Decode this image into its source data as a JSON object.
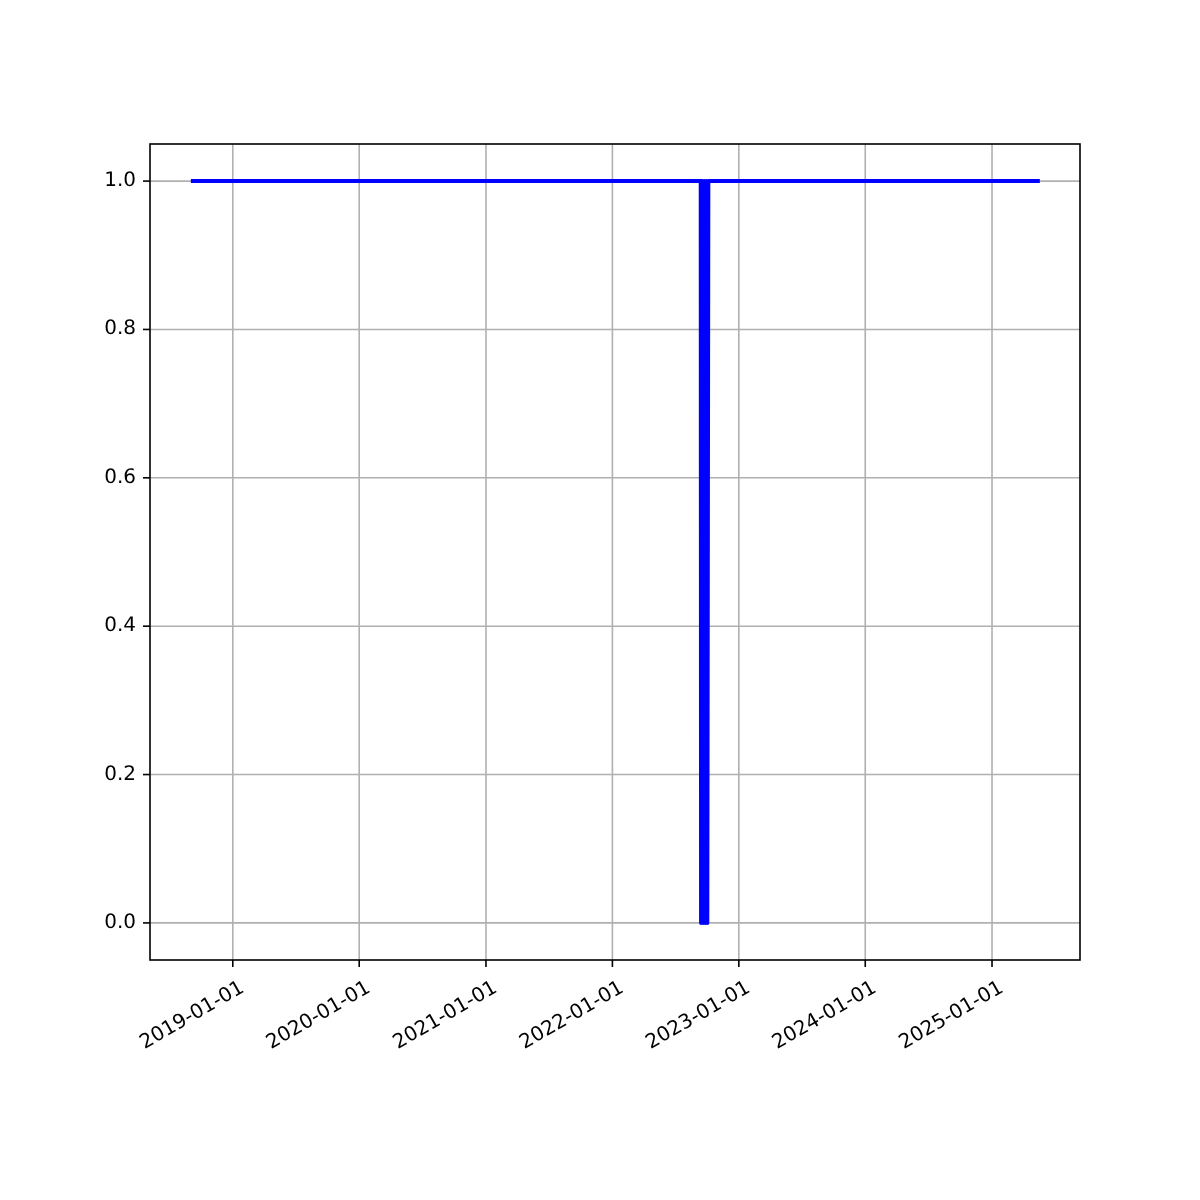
{
  "chart_data": {
    "type": "line",
    "x": [
      "2018-09-02",
      "2022-09-13",
      "2022-09-14",
      "2022-09-17",
      "2022-09-20",
      "2022-09-23",
      "2022-09-26",
      "2022-09-29",
      "2022-10-02",
      "2022-10-05",
      "2022-10-06",
      "2025-05-19"
    ],
    "series": [
      {
        "color": "#0000ff",
        "values": [
          1,
          1,
          0,
          1,
          0,
          1,
          0,
          1,
          0,
          1,
          1,
          1
        ]
      }
    ],
    "xlim": [
      "2018-05-07",
      "2025-09-12"
    ],
    "xticks": [
      "2019-01-01",
      "2020-01-01",
      "2021-01-01",
      "2022-01-01",
      "2023-01-01",
      "2024-01-01",
      "2025-01-01"
    ],
    "ylim": [
      -0.05,
      1.05
    ],
    "yticks": [
      {
        "value": 0,
        "label": "0.0"
      },
      {
        "value": 0.2,
        "label": "0.2"
      },
      {
        "value": 0.4,
        "label": "0.4"
      },
      {
        "value": 0.6,
        "label": "0.6"
      },
      {
        "value": 0.8,
        "label": "0.8"
      },
      {
        "value": 1,
        "label": "1.0"
      }
    ],
    "grid": true,
    "marker": "none",
    "line_style": "solid"
  }
}
